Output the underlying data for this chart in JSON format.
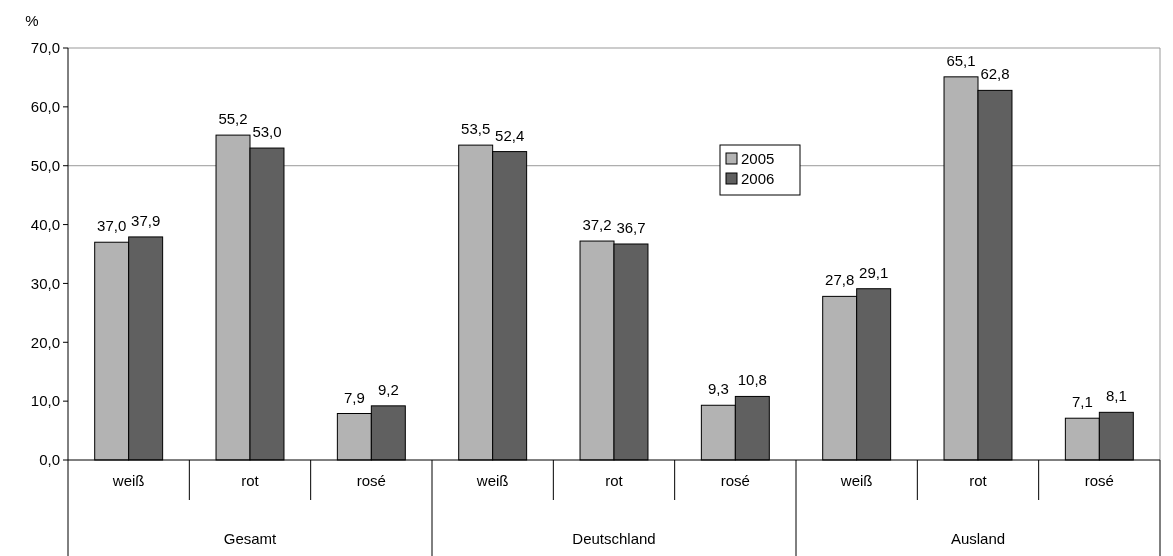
{
  "chart_data": {
    "type": "bar",
    "ylabel": "%",
    "categories": [
      "weiß",
      "rot",
      "rosé",
      "weiß",
      "rot",
      "rosé",
      "weiß",
      "rot",
      "rosé"
    ],
    "series": [
      {
        "name": "2005",
        "color": "#b3b3b3",
        "values": [
          37.0,
          55.2,
          7.9,
          53.5,
          37.2,
          9.3,
          27.8,
          65.1,
          7.1
        ],
        "value_labels": [
          "37,0",
          "55,2",
          "7,9",
          "53,5",
          "37,2",
          "9,3",
          "27,8",
          "65,1",
          "7,1"
        ]
      },
      {
        "name": "2006",
        "color": "#606060",
        "values": [
          37.9,
          53.0,
          9.2,
          52.4,
          36.7,
          10.8,
          29.1,
          62.8,
          8.1
        ],
        "value_labels": [
          "37,9",
          "53,0",
          "9,2",
          "52,4",
          "36,7",
          "10,8",
          "29,1",
          "62,8",
          "8,1"
        ]
      }
    ],
    "annotations": [
      "Gesamt",
      "Deutschland",
      "Ausland"
    ],
    "ylim": [
      0,
      70
    ],
    "yticks": [
      {
        "value": 0,
        "label": "0,0"
      },
      {
        "value": 10,
        "label": "10,0"
      },
      {
        "value": 20,
        "label": "20,0"
      },
      {
        "value": 30,
        "label": "30,0"
      },
      {
        "value": 40,
        "label": "40,0"
      },
      {
        "value": 50,
        "label": "50,0"
      },
      {
        "value": 60,
        "label": "60,0"
      },
      {
        "value": 70,
        "label": "70,0"
      }
    ],
    "ref_lines": [
      {
        "axis": "y",
        "value": 50,
        "color": "#9a9a9a"
      }
    ],
    "legend": "top"
  }
}
